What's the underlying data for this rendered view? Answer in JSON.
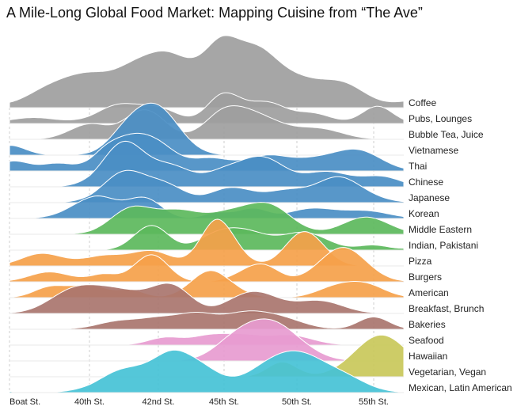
{
  "chart_data": {
    "type": "area",
    "subtype": "ridgeline",
    "title": "A Mile-Long Global Food Market: Mapping Cuisine from “The Ave”",
    "x_ticks": [
      "Boat St.",
      "40th St.",
      "42nd St.",
      "45th St.",
      "50th St.",
      "55th St."
    ],
    "grid": true,
    "colors": {
      "gray": "#9e9e9e",
      "blue": "#4a8ec4",
      "green": "#5cb85c",
      "orange": "#f5a14a",
      "brown": "#a9756e",
      "pink": "#e79bd0",
      "olive": "#c9c85a",
      "cyan": "#45c2d6"
    },
    "series": [
      {
        "name": "Coffee",
        "color": "gray",
        "peaks": [
          [
            -0.5,
            0.15,
            0.25
          ],
          [
            0.5,
            0.35,
            0.3
          ],
          [
            1.0,
            0.55,
            0.3
          ],
          [
            1.6,
            0.65,
            0.3
          ],
          [
            2.1,
            0.85,
            0.3
          ],
          [
            2.6,
            0.55,
            0.3
          ],
          [
            3.0,
            1.05,
            0.25
          ],
          [
            3.45,
            0.8,
            0.25
          ],
          [
            3.9,
            0.6,
            0.35
          ],
          [
            4.6,
            0.45,
            0.3
          ],
          [
            5.6,
            0.15,
            0.3
          ]
        ]
      },
      {
        "name": "Pubs, Lounges",
        "color": "gray",
        "peaks": [
          [
            0.3,
            0.12,
            0.3
          ],
          [
            1.4,
            0.35,
            0.3
          ],
          [
            2.0,
            0.3,
            0.3
          ],
          [
            3.0,
            0.6,
            0.25
          ],
          [
            3.6,
            0.4,
            0.25
          ],
          [
            4.2,
            0.2,
            0.25
          ],
          [
            5.05,
            0.35,
            0.2
          ]
        ]
      },
      {
        "name": "Bubble Tea, Juice",
        "color": "gray",
        "peaks": [
          [
            1.0,
            0.3,
            0.25
          ],
          [
            1.8,
            0.6,
            0.3
          ],
          [
            3.0,
            0.5,
            0.3
          ],
          [
            3.5,
            0.4,
            0.35
          ],
          [
            4.3,
            0.2,
            0.3
          ]
        ]
      },
      {
        "name": "Vietnamese",
        "color": "blue",
        "peaks": [
          [
            0.0,
            0.2,
            0.2
          ],
          [
            1.5,
            0.25,
            0.25
          ],
          [
            1.95,
            1.0,
            0.35
          ]
        ]
      },
      {
        "name": "Thai",
        "color": "blue",
        "peaks": [
          [
            0.05,
            0.2,
            0.2
          ],
          [
            0.6,
            0.15,
            0.2
          ],
          [
            1.2,
            0.2,
            0.2
          ],
          [
            1.55,
            0.55,
            0.3
          ],
          [
            2.0,
            0.45,
            0.3
          ],
          [
            2.8,
            0.25,
            0.3
          ],
          [
            3.6,
            0.3,
            0.3
          ],
          [
            4.25,
            0.2,
            0.3
          ],
          [
            4.8,
            0.4,
            0.3
          ]
        ]
      },
      {
        "name": "Chinese",
        "color": "blue",
        "peaks": [
          [
            1.5,
            0.9,
            0.3
          ],
          [
            2.2,
            0.4,
            0.3
          ],
          [
            3.0,
            0.3,
            0.3
          ],
          [
            3.55,
            0.55,
            0.3
          ],
          [
            4.4,
            0.3,
            0.3
          ],
          [
            5.1,
            0.2,
            0.25
          ]
        ]
      },
      {
        "name": "Japanese",
        "color": "blue",
        "peaks": [
          [
            1.5,
            0.6,
            0.3
          ],
          [
            2.1,
            0.35,
            0.3
          ],
          [
            3.1,
            0.3,
            0.3
          ],
          [
            3.9,
            0.25,
            0.3
          ],
          [
            4.5,
            0.35,
            0.25
          ],
          [
            4.75,
            0.2,
            0.3
          ]
        ]
      },
      {
        "name": "Korean",
        "color": "blue",
        "peaks": [
          [
            1.1,
            0.45,
            0.3
          ],
          [
            1.8,
            0.4,
            0.25
          ],
          [
            2.9,
            0.12,
            0.2
          ],
          [
            3.4,
            0.2,
            0.2
          ],
          [
            4.2,
            0.2,
            0.3
          ],
          [
            4.9,
            0.15,
            0.3
          ]
        ]
      },
      {
        "name": "Middle Eastern",
        "color": "green",
        "peaks": [
          [
            1.6,
            0.5,
            0.3
          ],
          [
            2.3,
            0.45,
            0.35
          ],
          [
            3.1,
            0.4,
            0.35
          ],
          [
            3.65,
            0.5,
            0.3
          ],
          [
            4.9,
            0.35,
            0.3
          ]
        ]
      },
      {
        "name": "Indian, Pakistani",
        "color": "green",
        "peaks": [
          [
            1.9,
            0.5,
            0.25
          ],
          [
            2.9,
            0.3,
            0.3
          ],
          [
            3.35,
            0.3,
            0.3
          ],
          [
            4.1,
            0.35,
            0.3
          ],
          [
            5.0,
            0.1,
            0.2
          ],
          [
            5.9,
            0.2,
            0.25
          ]
        ]
      },
      {
        "name": "Pizza",
        "color": "orange",
        "peaks": [
          [
            0.4,
            0.25,
            0.25
          ],
          [
            1.2,
            0.2,
            0.3
          ],
          [
            1.9,
            0.3,
            0.3
          ],
          [
            2.9,
            0.95,
            0.25
          ],
          [
            4.1,
            0.7,
            0.25
          ]
        ]
      },
      {
        "name": "Burgers",
        "color": "orange",
        "peaks": [
          [
            0.5,
            0.2,
            0.25
          ],
          [
            1.2,
            0.15,
            0.2
          ],
          [
            1.9,
            0.55,
            0.25
          ],
          [
            3.4,
            0.25,
            0.25
          ],
          [
            3.6,
            0.15,
            0.2
          ],
          [
            4.6,
            0.7,
            0.3
          ]
        ]
      },
      {
        "name": "American",
        "color": "orange",
        "peaks": [
          [
            0.5,
            0.2,
            0.2
          ],
          [
            1.0,
            0.25,
            0.25
          ],
          [
            1.6,
            0.15,
            0.2
          ],
          [
            2.8,
            0.55,
            0.3
          ],
          [
            4.5,
            0.2,
            0.25
          ],
          [
            4.9,
            0.25,
            0.25
          ]
        ]
      },
      {
        "name": "Breakfast, Brunch",
        "color": "brown",
        "peaks": [
          [
            0.8,
            0.45,
            0.3
          ],
          [
            1.3,
            0.35,
            0.3
          ],
          [
            1.7,
            0.2,
            0.3
          ],
          [
            2.2,
            0.55,
            0.3
          ],
          [
            3.3,
            0.3,
            0.3
          ],
          [
            3.6,
            0.2,
            0.3
          ],
          [
            4.3,
            0.25,
            0.3
          ]
        ]
      },
      {
        "name": "Bakeries",
        "color": "brown",
        "peaks": [
          [
            1.4,
            0.15,
            0.3
          ],
          [
            2.0,
            0.2,
            0.3
          ],
          [
            2.6,
            0.3,
            0.3
          ],
          [
            3.3,
            0.3,
            0.3
          ],
          [
            3.8,
            0.2,
            0.3
          ],
          [
            5.0,
            0.25,
            0.2
          ]
        ]
      },
      {
        "name": "Seafood",
        "color": "pink",
        "peaks": [
          [
            2.1,
            0.15,
            0.25
          ],
          [
            2.8,
            0.2,
            0.3
          ],
          [
            3.3,
            0.15,
            0.25
          ],
          [
            3.9,
            0.2,
            0.3
          ]
        ]
      },
      {
        "name": "Hawaiian",
        "color": "pink",
        "peaks": [
          [
            3.25,
            0.5,
            0.35
          ],
          [
            3.75,
            0.6,
            0.35
          ]
        ]
      },
      {
        "name": "Vegetarian, Vegan",
        "color": "olive",
        "peaks": [
          [
            3.8,
            0.3,
            0.2
          ],
          [
            5.1,
            0.85,
            0.35
          ]
        ]
      },
      {
        "name": "Mexican, Latin American",
        "color": "cyan",
        "peaks": [
          [
            -0.3,
            0.2,
            0.15
          ],
          [
            1.5,
            0.45,
            0.35
          ],
          [
            2.2,
            0.7,
            0.3
          ],
          [
            2.7,
            0.4,
            0.3
          ],
          [
            3.65,
            0.55,
            0.35
          ],
          [
            4.1,
            0.5,
            0.3
          ],
          [
            4.6,
            0.3,
            0.3
          ]
        ]
      }
    ]
  }
}
